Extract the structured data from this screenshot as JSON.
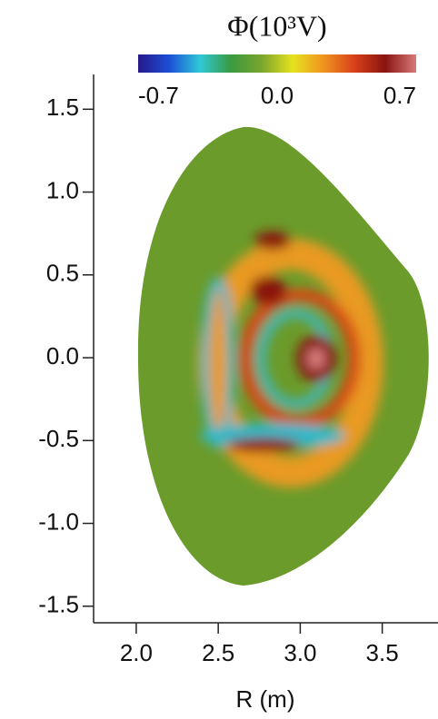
{
  "chart_data": {
    "type": "contour",
    "colorbar_title": "Φ(10³V)",
    "clim": [
      -0.7,
      0.7
    ],
    "cticks": [
      -0.7,
      {
        "value": 0,
        "label": "0.0"
      },
      0.7
    ],
    "colormap": [
      "#26188a",
      "#1c4fd6",
      "#2fc8d8",
      "#3a9a40",
      "#7aa52c",
      "#e6e21e",
      "#f0941e",
      "#d8401a",
      "#8a1410",
      "#d87a7a"
    ],
    "xlabel": "R (m)",
    "xlim": [
      1.74,
      3.84
    ],
    "xticks": [
      {
        "value": 2,
        "label": "2.0"
      },
      2.5,
      {
        "value": 3,
        "label": "3.0"
      },
      3.5
    ],
    "ylim": [
      -1.6,
      1.71
    ],
    "yticks": [
      1.5,
      {
        "value": 1,
        "label": "1.0"
      },
      0.5,
      {
        "value": 0,
        "label": "0.0"
      },
      -0.5,
      {
        "value": -1,
        "label": "-1.0"
      },
      -1.5
    ]
  }
}
